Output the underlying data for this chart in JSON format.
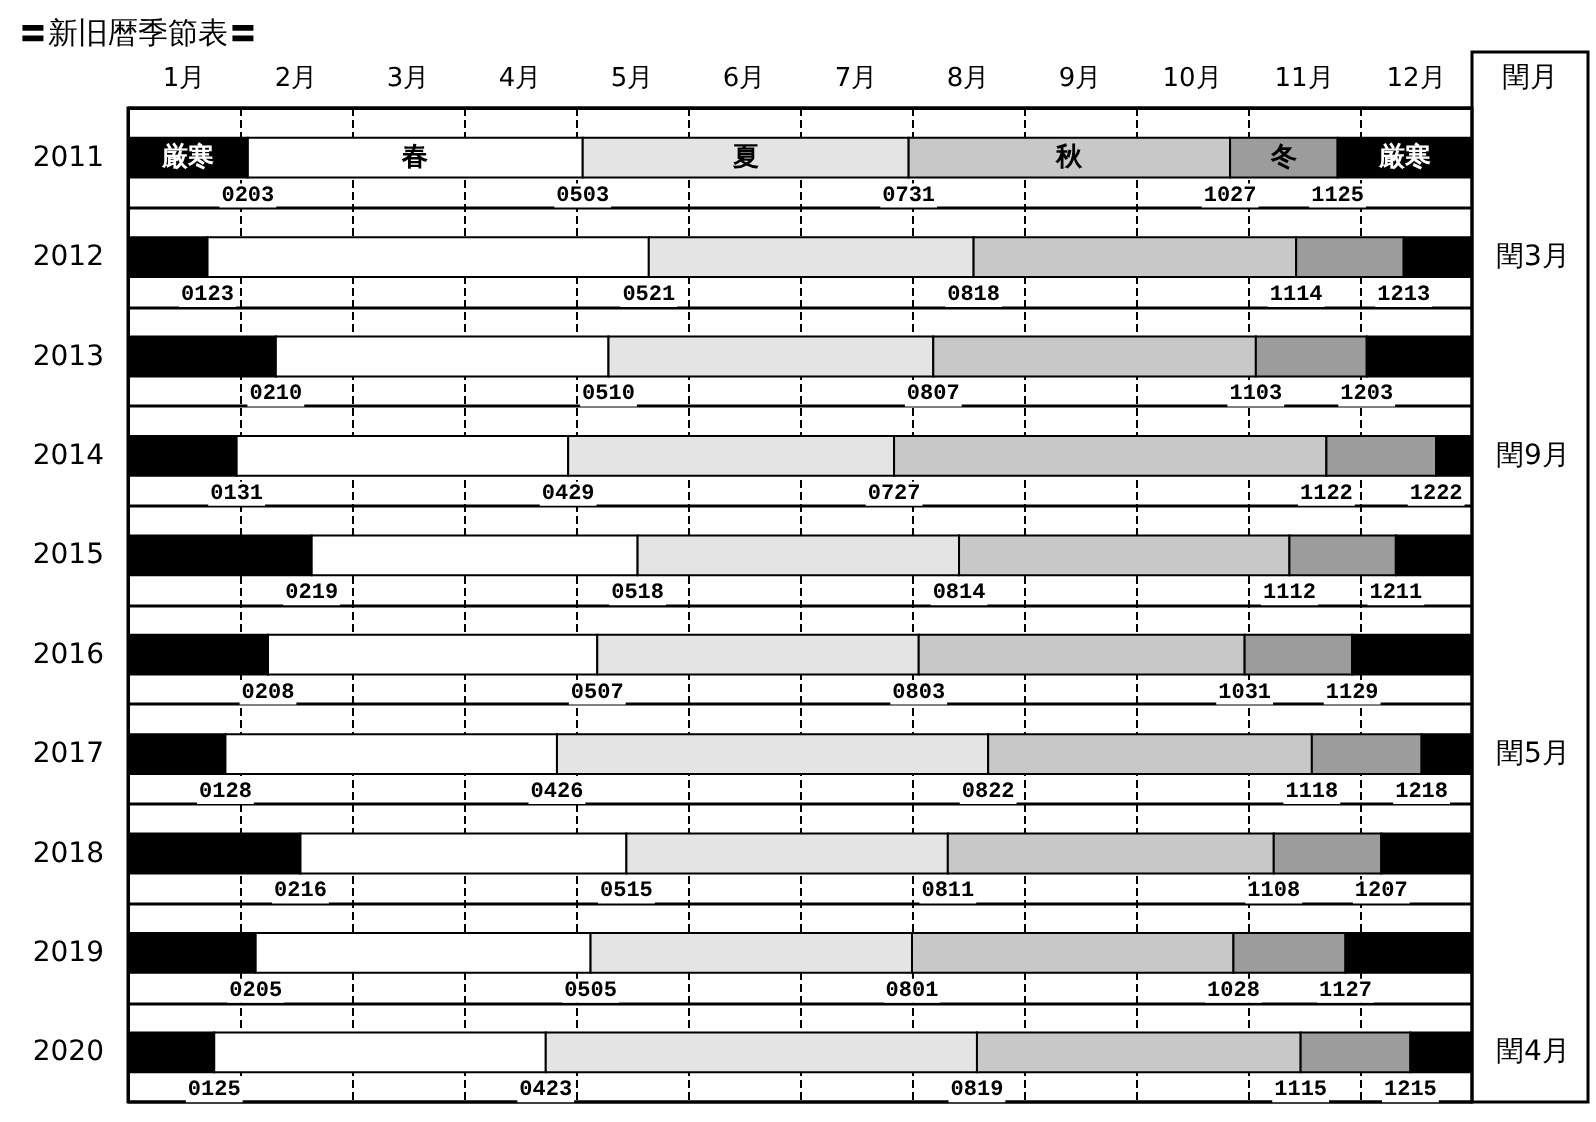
{
  "chart_data": {
    "type": "bar",
    "orientation": "horizontal",
    "title": "〓新旧暦季節表〓",
    "categories": [
      "2011",
      "2012",
      "2013",
      "2014",
      "2015",
      "2016",
      "2017",
      "2018",
      "2019",
      "2020"
    ],
    "y2label": "閏月",
    "y2_categories": [
      null,
      "閏3月",
      null,
      "閏9月",
      null,
      null,
      "閏5月",
      null,
      null,
      "閏4月"
    ],
    "series": [
      {
        "name": "厳寒",
        "color": "#000000",
        "base": [
          0.5,
          0.5,
          0.5,
          0.5,
          0.5,
          0.5,
          0.5,
          0.5,
          0.5,
          0.5
        ],
        "values": [
          1.07,
          0.71,
          1.32,
          0.97,
          1.64,
          1.25,
          0.87,
          1.54,
          1.14,
          0.77
        ]
      },
      {
        "name": "春",
        "color": "#ffffff",
        "base": [
          1.57,
          1.21,
          1.82,
          1.47,
          2.14,
          1.75,
          1.37,
          2.04,
          1.64,
          1.27
        ],
        "values": [
          2.99,
          3.94,
          2.97,
          2.96,
          2.91,
          2.94,
          2.96,
          2.91,
          2.99,
          2.96
        ]
      },
      {
        "name": "夏",
        "color": "#e4e4e4",
        "base": [
          4.56,
          5.15,
          4.79,
          4.43,
          5.05,
          4.69,
          4.33,
          4.95,
          4.63,
          4.23
        ],
        "values": [
          2.91,
          2.9,
          2.9,
          2.91,
          2.87,
          2.87,
          3.85,
          2.87,
          2.87,
          3.85
        ]
      },
      {
        "name": "秋",
        "color": "#c8c8c8",
        "base": [
          7.47,
          8.05,
          7.69,
          7.34,
          7.92,
          7.56,
          8.18,
          7.82,
          7.5,
          8.08
        ],
        "values": [
          2.87,
          2.88,
          2.88,
          3.86,
          2.95,
          2.91,
          2.89,
          2.91,
          2.87,
          2.89
        ]
      },
      {
        "name": "冬",
        "color": "#9c9c9c",
        "base": [
          10.34,
          10.93,
          10.57,
          11.2,
          10.87,
          10.47,
          11.07,
          10.73,
          10.37,
          10.97
        ],
        "values": [
          0.96,
          0.96,
          0.99,
          0.98,
          0.95,
          0.96,
          0.98,
          0.96,
          1.0,
          0.98
        ]
      },
      {
        "name": "厳寒",
        "color": "#000000",
        "base": [
          11.3,
          11.89,
          11.56,
          12.18,
          11.82,
          11.43,
          12.05,
          11.69,
          11.37,
          11.95
        ],
        "values": [
          1.2,
          0.61,
          0.94,
          0.32,
          0.68,
          1.07,
          0.45,
          0.81,
          1.13,
          0.55
        ]
      }
    ],
    "xlim": [
      0.5,
      12.5
    ],
    "xticks": [
      {
        "value": 1,
        "label": "1月"
      },
      {
        "value": 1.5,
        "label": null
      },
      {
        "value": 2,
        "label": "2月"
      },
      {
        "value": 2.5,
        "label": null
      },
      {
        "value": 3,
        "label": "3月"
      },
      {
        "value": 3.5,
        "label": null
      },
      {
        "value": 4,
        "label": "4月"
      },
      {
        "value": 4.5,
        "label": null
      },
      {
        "value": 5,
        "label": "5月"
      },
      {
        "value": 5.5,
        "label": null
      },
      {
        "value": 6,
        "label": "6月"
      },
      {
        "value": 6.5,
        "label": null
      },
      {
        "value": 7,
        "label": "7月"
      },
      {
        "value": 7.5,
        "label": null
      },
      {
        "value": 8,
        "label": "8月"
      },
      {
        "value": 8.5,
        "label": null
      },
      {
        "value": 9,
        "label": "9月"
      },
      {
        "value": 9.5,
        "label": null
      },
      {
        "value": 10,
        "label": "10月"
      },
      {
        "value": 10.5,
        "label": null
      },
      {
        "value": 11,
        "label": "11月"
      },
      {
        "value": 11.5,
        "label": null
      },
      {
        "value": 12,
        "label": "12月"
      }
    ],
    "grid": true,
    "annotations": [
      {
        "text": "0203",
        "x": 1.57,
        "y": "2011"
      },
      {
        "text": "0503",
        "x": 4.56,
        "y": "2011"
      },
      {
        "text": "0731",
        "x": 7.47,
        "y": "2011"
      },
      {
        "text": "1027",
        "x": 10.34,
        "y": "2011"
      },
      {
        "text": "1125",
        "x": 11.3,
        "y": "2011"
      },
      {
        "text": "0123",
        "x": 1.21,
        "y": "2012"
      },
      {
        "text": "0521",
        "x": 5.15,
        "y": "2012"
      },
      {
        "text": "0818",
        "x": 8.05,
        "y": "2012"
      },
      {
        "text": "1114",
        "x": 10.93,
        "y": "2012"
      },
      {
        "text": "1213",
        "x": 11.89,
        "y": "2012"
      },
      {
        "text": "0210",
        "x": 1.82,
        "y": "2013"
      },
      {
        "text": "0510",
        "x": 4.79,
        "y": "2013"
      },
      {
        "text": "0807",
        "x": 7.69,
        "y": "2013"
      },
      {
        "text": "1103",
        "x": 10.57,
        "y": "2013"
      },
      {
        "text": "1203",
        "x": 11.56,
        "y": "2013"
      },
      {
        "text": "0131",
        "x": 1.47,
        "y": "2014"
      },
      {
        "text": "0429",
        "x": 4.43,
        "y": "2014"
      },
      {
        "text": "0727",
        "x": 7.34,
        "y": "2014"
      },
      {
        "text": "1122",
        "x": 11.2,
        "y": "2014"
      },
      {
        "text": "1222",
        "x": 12.18,
        "y": "2014"
      },
      {
        "text": "0219",
        "x": 2.14,
        "y": "2015"
      },
      {
        "text": "0518",
        "x": 5.05,
        "y": "2015"
      },
      {
        "text": "0814",
        "x": 7.92,
        "y": "2015"
      },
      {
        "text": "1112",
        "x": 10.87,
        "y": "2015"
      },
      {
        "text": "1211",
        "x": 11.82,
        "y": "2015"
      },
      {
        "text": "0208",
        "x": 1.75,
        "y": "2016"
      },
      {
        "text": "0507",
        "x": 4.69,
        "y": "2016"
      },
      {
        "text": "0803",
        "x": 7.56,
        "y": "2016"
      },
      {
        "text": "1031",
        "x": 10.47,
        "y": "2016"
      },
      {
        "text": "1129",
        "x": 11.43,
        "y": "2016"
      },
      {
        "text": "0128",
        "x": 1.37,
        "y": "2017"
      },
      {
        "text": "0426",
        "x": 4.33,
        "y": "2017"
      },
      {
        "text": "0822",
        "x": 8.18,
        "y": "2017"
      },
      {
        "text": "1118",
        "x": 11.07,
        "y": "2017"
      },
      {
        "text": "1218",
        "x": 12.05,
        "y": "2017"
      },
      {
        "text": "0216",
        "x": 2.04,
        "y": "2018"
      },
      {
        "text": "0515",
        "x": 4.95,
        "y": "2018"
      },
      {
        "text": "0811",
        "x": 7.82,
        "y": "2018"
      },
      {
        "text": "1108",
        "x": 10.73,
        "y": "2018"
      },
      {
        "text": "1207",
        "x": 11.69,
        "y": "2018"
      },
      {
        "text": "0205",
        "x": 1.64,
        "y": "2019"
      },
      {
        "text": "0505",
        "x": 4.63,
        "y": "2019"
      },
      {
        "text": "0801",
        "x": 7.5,
        "y": "2019"
      },
      {
        "text": "1028",
        "x": 10.37,
        "y": "2019"
      },
      {
        "text": "1127",
        "x": 11.37,
        "y": "2019"
      },
      {
        "text": "0125",
        "x": 1.27,
        "y": "2020"
      },
      {
        "text": "0423",
        "x": 4.23,
        "y": "2020"
      },
      {
        "text": "0819",
        "x": 8.08,
        "y": "2020"
      },
      {
        "text": "1115",
        "x": 10.97,
        "y": "2020"
      },
      {
        "text": "1215",
        "x": 11.95,
        "y": "2020"
      }
    ]
  }
}
